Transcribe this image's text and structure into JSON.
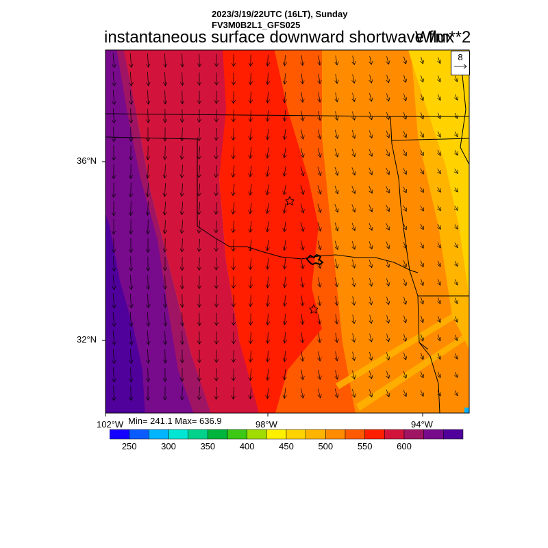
{
  "header": {
    "date_line": "2023/3/19/22UTC (16LT), Sunday",
    "model_line": "FV3M0B2L1_GFS025",
    "title": "instantaneous surface downward shortwave flux",
    "units": "W/m**2"
  },
  "map": {
    "lat_labels": [
      "36°N",
      "32°N"
    ],
    "lon_labels": [
      "102°W",
      "98°W",
      "94°W"
    ],
    "minmax": "Min= 241.1 Max= 636.9",
    "min": 241.1,
    "max": 636.9,
    "stars": [
      "star-marker",
      "star-marker"
    ]
  },
  "vector_ref": {
    "label": "8",
    "icon": "arrow-right-icon"
  },
  "colorbar": {
    "colors": [
      "#1400ff",
      "#0a5cff",
      "#00b4ff",
      "#00e6d2",
      "#00d28c",
      "#00b43c",
      "#3cc814",
      "#a0dc00",
      "#fff000",
      "#ffd200",
      "#ffb400",
      "#ff8c00",
      "#ff5a00",
      "#ff1e00",
      "#d2143c",
      "#a01464",
      "#780a8c",
      "#50009b"
    ],
    "tick_labels": [
      "250",
      "300",
      "350",
      "400",
      "450",
      "500",
      "550",
      "600"
    ]
  }
}
